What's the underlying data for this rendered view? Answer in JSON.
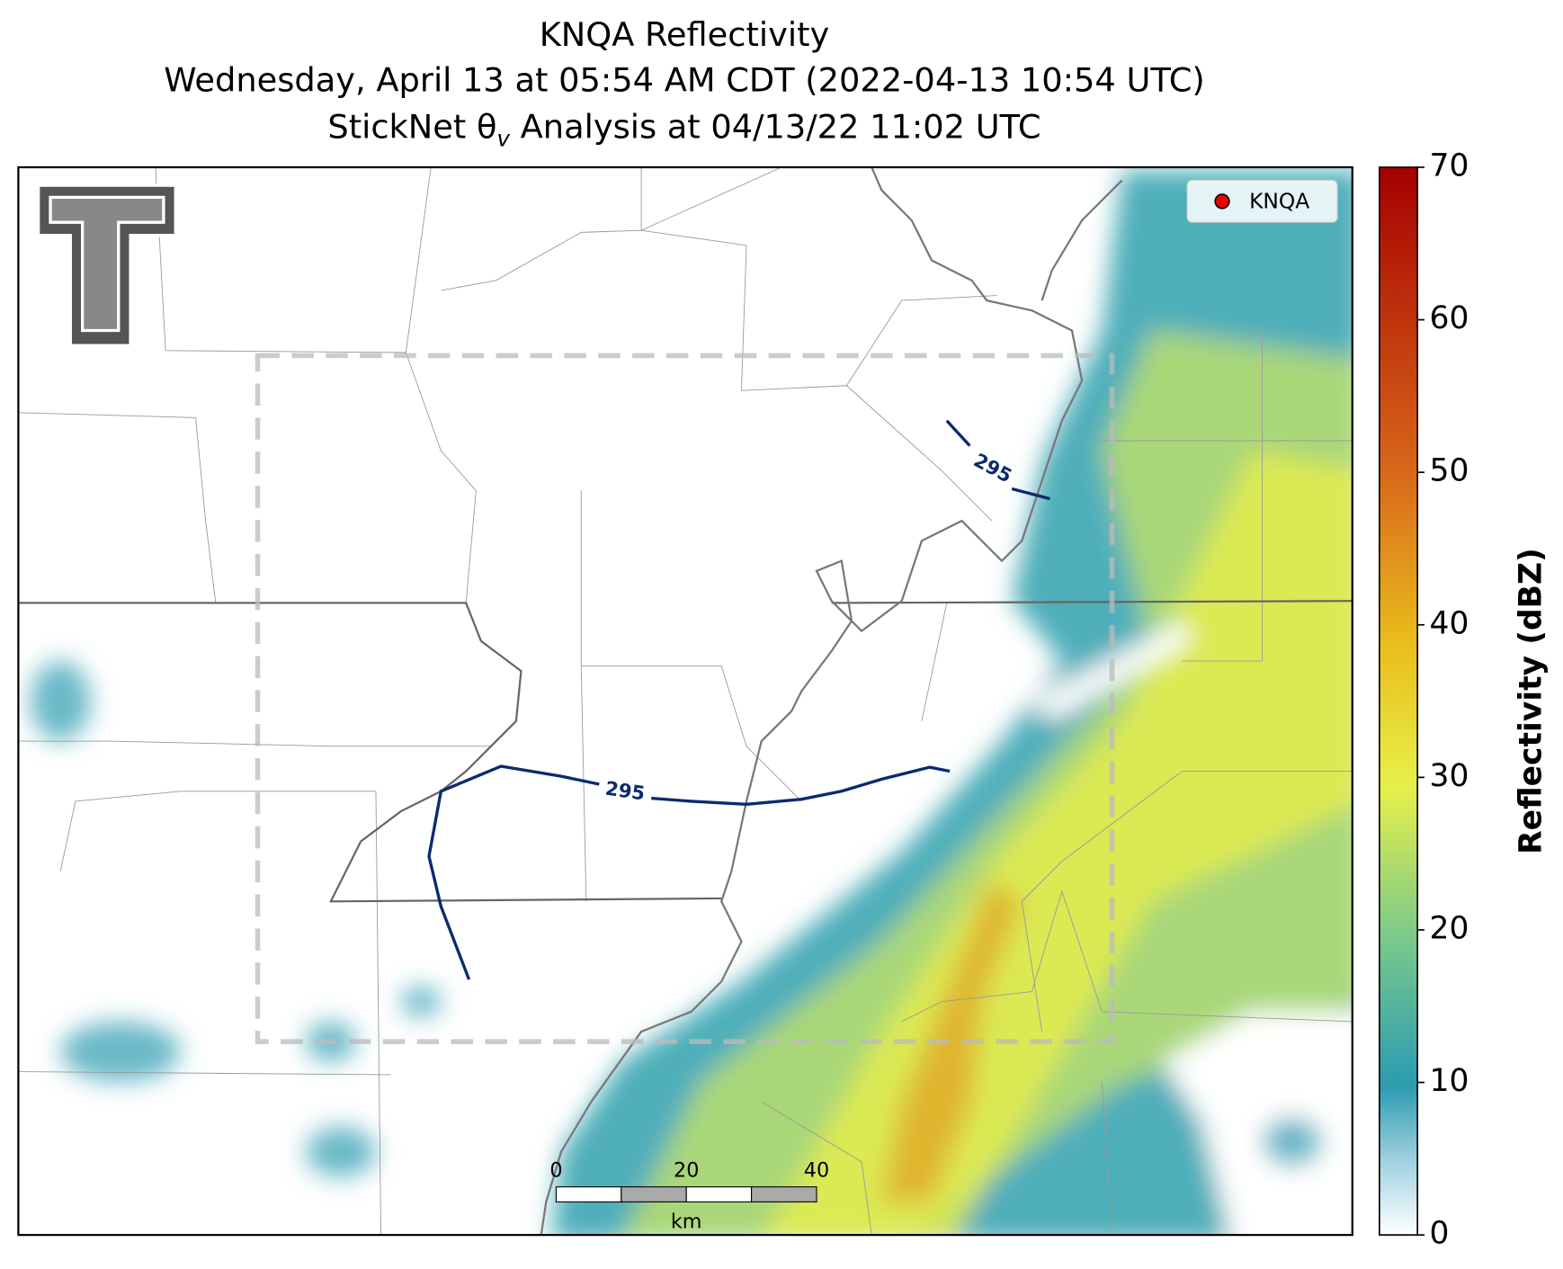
{
  "header": {
    "title": [
      "KNQA Reflectivity",
      "Wednesday, April 13 at 05:54 AM CDT (2022-04-13 10:54 UTC)"
    ],
    "subtitle": {
      "before": "StickNet θ",
      "subscript": "v",
      "after": " Analysis at 04/13/22 11:02 UTC"
    }
  },
  "legend": {
    "label": "KNQA"
  },
  "contour_labels": [
    "295",
    "295"
  ],
  "scale_bar": {
    "ticks": [
      "0",
      "20",
      "40"
    ],
    "unit": "km"
  },
  "colorbar": {
    "label": "Reflectivity (dBZ)",
    "ticks": [
      0,
      10,
      20,
      30,
      40,
      50,
      60,
      70
    ]
  }
}
